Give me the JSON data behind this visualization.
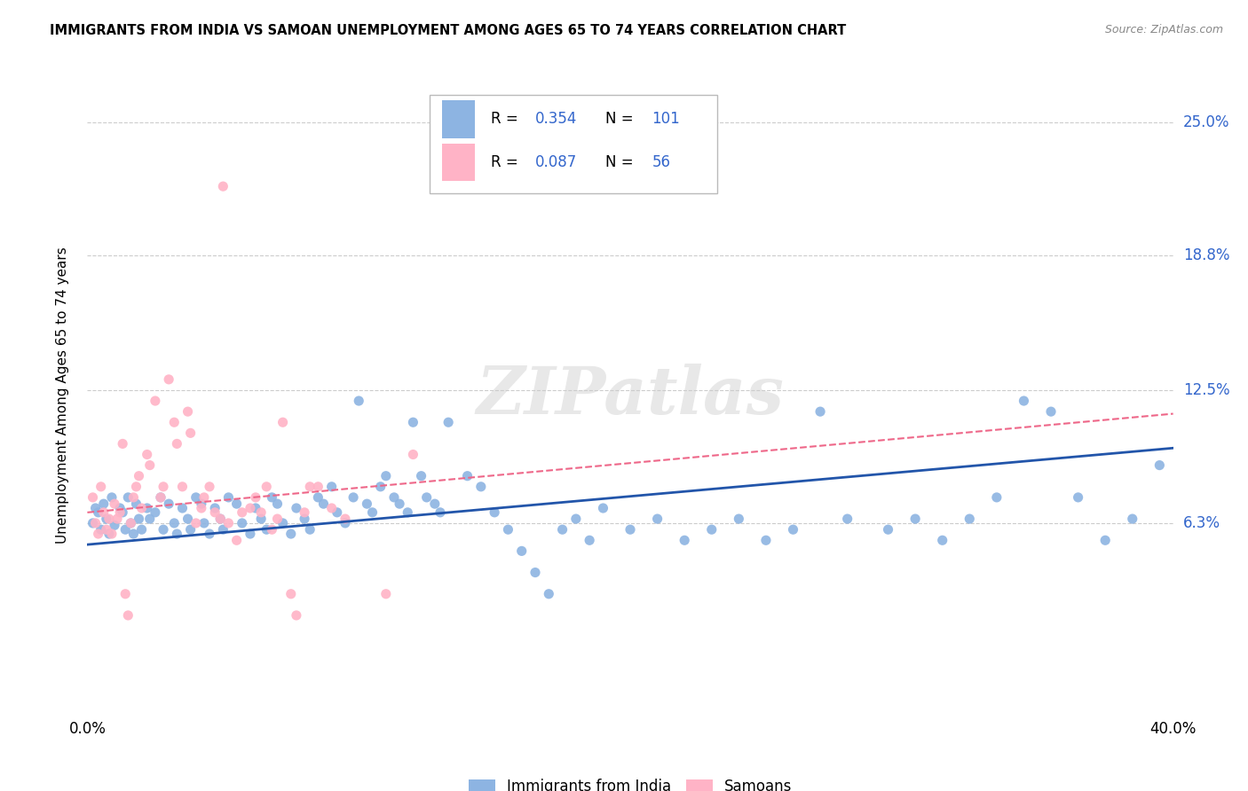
{
  "title": "IMMIGRANTS FROM INDIA VS SAMOAN UNEMPLOYMENT AMONG AGES 65 TO 74 YEARS CORRELATION CHART",
  "source": "Source: ZipAtlas.com",
  "ylabel": "Unemployment Among Ages 65 to 74 years",
  "ytick_labels": [
    "25.0%",
    "18.8%",
    "12.5%",
    "6.3%"
  ],
  "ytick_values": [
    0.25,
    0.188,
    0.125,
    0.063
  ],
  "xmin": 0.0,
  "xmax": 0.4,
  "ymin": -0.025,
  "ymax": 0.27,
  "legend_label_india": "Immigrants from India",
  "legend_label_samoan": "Samoans",
  "color_india": "#8DB4E2",
  "color_samoan": "#FFB3C6",
  "color_india_line": "#2255AA",
  "color_samoan_line": "#EE6688",
  "color_blue_text": "#3366CC",
  "color_pink_text": "#EE6688",
  "watermark": "ZIPatlas",
  "india_x": [
    0.002,
    0.003,
    0.004,
    0.005,
    0.006,
    0.007,
    0.008,
    0.009,
    0.01,
    0.012,
    0.013,
    0.014,
    0.015,
    0.016,
    0.017,
    0.018,
    0.019,
    0.02,
    0.022,
    0.023,
    0.025,
    0.027,
    0.028,
    0.03,
    0.032,
    0.033,
    0.035,
    0.037,
    0.038,
    0.04,
    0.042,
    0.043,
    0.045,
    0.047,
    0.049,
    0.05,
    0.052,
    0.055,
    0.057,
    0.06,
    0.062,
    0.064,
    0.066,
    0.068,
    0.07,
    0.072,
    0.075,
    0.077,
    0.08,
    0.082,
    0.085,
    0.087,
    0.09,
    0.092,
    0.095,
    0.098,
    0.1,
    0.103,
    0.105,
    0.108,
    0.11,
    0.113,
    0.115,
    0.118,
    0.12,
    0.123,
    0.125,
    0.128,
    0.13,
    0.133,
    0.14,
    0.145,
    0.15,
    0.155,
    0.16,
    0.165,
    0.17,
    0.175,
    0.18,
    0.185,
    0.19,
    0.2,
    0.21,
    0.22,
    0.23,
    0.24,
    0.25,
    0.26,
    0.27,
    0.28,
    0.295,
    0.305,
    0.315,
    0.325,
    0.335,
    0.345,
    0.355,
    0.365,
    0.375,
    0.385,
    0.395
  ],
  "india_y": [
    0.063,
    0.07,
    0.068,
    0.06,
    0.072,
    0.065,
    0.058,
    0.075,
    0.062,
    0.07,
    0.068,
    0.06,
    0.075,
    0.063,
    0.058,
    0.072,
    0.065,
    0.06,
    0.07,
    0.065,
    0.068,
    0.075,
    0.06,
    0.072,
    0.063,
    0.058,
    0.07,
    0.065,
    0.06,
    0.075,
    0.072,
    0.063,
    0.058,
    0.07,
    0.065,
    0.06,
    0.075,
    0.072,
    0.063,
    0.058,
    0.07,
    0.065,
    0.06,
    0.075,
    0.072,
    0.063,
    0.058,
    0.07,
    0.065,
    0.06,
    0.075,
    0.072,
    0.08,
    0.068,
    0.063,
    0.075,
    0.12,
    0.072,
    0.068,
    0.08,
    0.085,
    0.075,
    0.072,
    0.068,
    0.11,
    0.085,
    0.075,
    0.072,
    0.068,
    0.11,
    0.085,
    0.08,
    0.068,
    0.06,
    0.05,
    0.04,
    0.03,
    0.06,
    0.065,
    0.055,
    0.07,
    0.06,
    0.065,
    0.055,
    0.06,
    0.065,
    0.055,
    0.06,
    0.115,
    0.065,
    0.06,
    0.065,
    0.055,
    0.065,
    0.075,
    0.12,
    0.115,
    0.075,
    0.055,
    0.065,
    0.09
  ],
  "samoan_x": [
    0.002,
    0.003,
    0.004,
    0.005,
    0.006,
    0.007,
    0.008,
    0.009,
    0.01,
    0.011,
    0.012,
    0.013,
    0.014,
    0.015,
    0.016,
    0.017,
    0.018,
    0.019,
    0.02,
    0.022,
    0.023,
    0.025,
    0.027,
    0.028,
    0.03,
    0.032,
    0.033,
    0.035,
    0.037,
    0.038,
    0.04,
    0.042,
    0.043,
    0.045,
    0.047,
    0.049,
    0.05,
    0.052,
    0.055,
    0.057,
    0.06,
    0.062,
    0.064,
    0.066,
    0.068,
    0.07,
    0.072,
    0.075,
    0.077,
    0.08,
    0.082,
    0.085,
    0.09,
    0.095,
    0.11,
    0.12
  ],
  "samoan_y": [
    0.075,
    0.063,
    0.058,
    0.08,
    0.068,
    0.06,
    0.065,
    0.058,
    0.072,
    0.065,
    0.068,
    0.1,
    0.03,
    0.02,
    0.063,
    0.075,
    0.08,
    0.085,
    0.07,
    0.095,
    0.09,
    0.12,
    0.075,
    0.08,
    0.13,
    0.11,
    0.1,
    0.08,
    0.115,
    0.105,
    0.063,
    0.07,
    0.075,
    0.08,
    0.068,
    0.065,
    0.22,
    0.063,
    0.055,
    0.068,
    0.07,
    0.075,
    0.068,
    0.08,
    0.06,
    0.065,
    0.11,
    0.03,
    0.02,
    0.068,
    0.08,
    0.08,
    0.07,
    0.065,
    0.03,
    0.095
  ],
  "india_line_x": [
    0.0,
    0.4
  ],
  "india_line_y": [
    0.053,
    0.098
  ],
  "samoan_line_x": [
    0.0,
    0.4
  ],
  "samoan_line_y": [
    0.068,
    0.114
  ]
}
